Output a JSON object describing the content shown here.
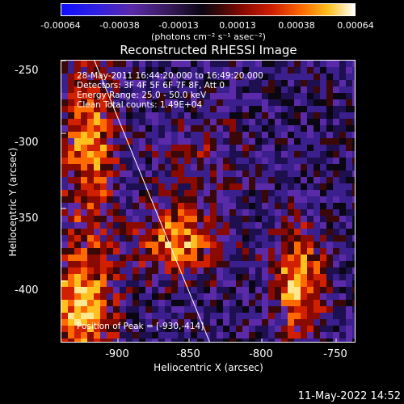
{
  "colorbar": {
    "labels": [
      "-0.00064",
      "-0.00038",
      "-0.00013",
      "0.00013",
      "0.00038",
      "0.00064"
    ],
    "units": "(photons cm⁻² s⁻¹ asec⁻²)"
  },
  "plot": {
    "title": "Reconstructed RHESSI Image",
    "annotations": {
      "line1": "28-May-2011 16:44:20.000 to 16:49:20.000",
      "line2": "Detectors: 3F 4F 5F 6F 7F 8F, Att 0",
      "line3": "Energy Range: 25.0 - 50.0 keV",
      "line4": "Clean   Total counts: 1.49E+04",
      "peak": "Position of Peak = [-930,-414]"
    },
    "xlabel": "Heliocentric X (arcsec)",
    "ylabel": "Heliocentric Y (arcsec)",
    "xticks": [
      "-900",
      "-850",
      "-800",
      "-750"
    ],
    "yticks": [
      "-250",
      "-300",
      "-350",
      "-400"
    ]
  },
  "timestamp": "11-May-2022 14:52",
  "colors": {
    "background": "#000000",
    "foreground": "#ffffff",
    "low_flux": "#3b1f8c",
    "high_flux": "#ffd060"
  }
}
